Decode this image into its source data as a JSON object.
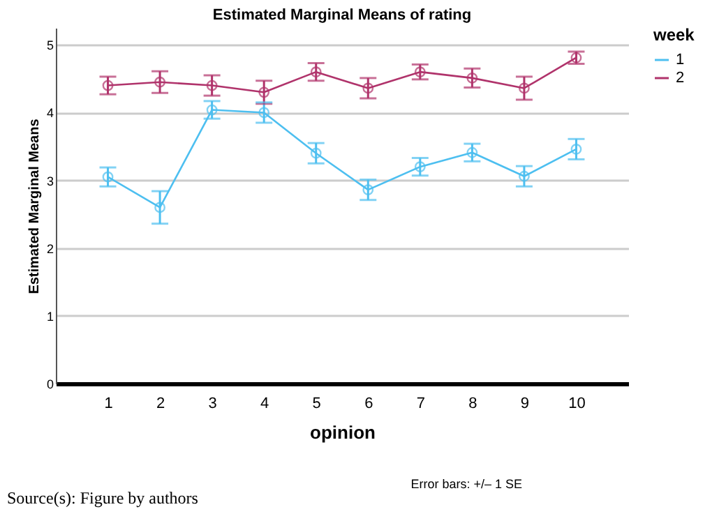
{
  "chart_data": {
    "type": "line",
    "title": "Estimated Marginal Means of rating",
    "xlabel": "opinion",
    "ylabel": "Estimated Marginal Means",
    "legend_title": "week",
    "categories": [
      "1",
      "2",
      "3",
      "4",
      "5",
      "6",
      "7",
      "8",
      "9",
      "10"
    ],
    "series": [
      {
        "name": "1",
        "color": "#4dbff0",
        "values": [
          3.05,
          2.6,
          4.04,
          4.0,
          3.4,
          2.86,
          3.2,
          3.41,
          3.06,
          3.46
        ],
        "errors": [
          0.14,
          0.24,
          0.13,
          0.15,
          0.15,
          0.15,
          0.13,
          0.13,
          0.15,
          0.15
        ]
      },
      {
        "name": "2",
        "color": "#b0336b",
        "values": [
          4.4,
          4.45,
          4.4,
          4.3,
          4.6,
          4.36,
          4.6,
          4.51,
          4.36,
          4.81
        ],
        "errors": [
          0.13,
          0.16,
          0.15,
          0.17,
          0.13,
          0.15,
          0.11,
          0.14,
          0.17,
          0.09
        ]
      }
    ],
    "ylim": [
      0,
      5.25
    ],
    "yticks": [
      0,
      1,
      2,
      3,
      4,
      5
    ],
    "grid": "y",
    "legend": "top right",
    "marker": "circle",
    "line_style": "solid",
    "annotations": [
      "Error bars: +/– 1 SE",
      "Source(s): Figure by authors"
    ]
  }
}
